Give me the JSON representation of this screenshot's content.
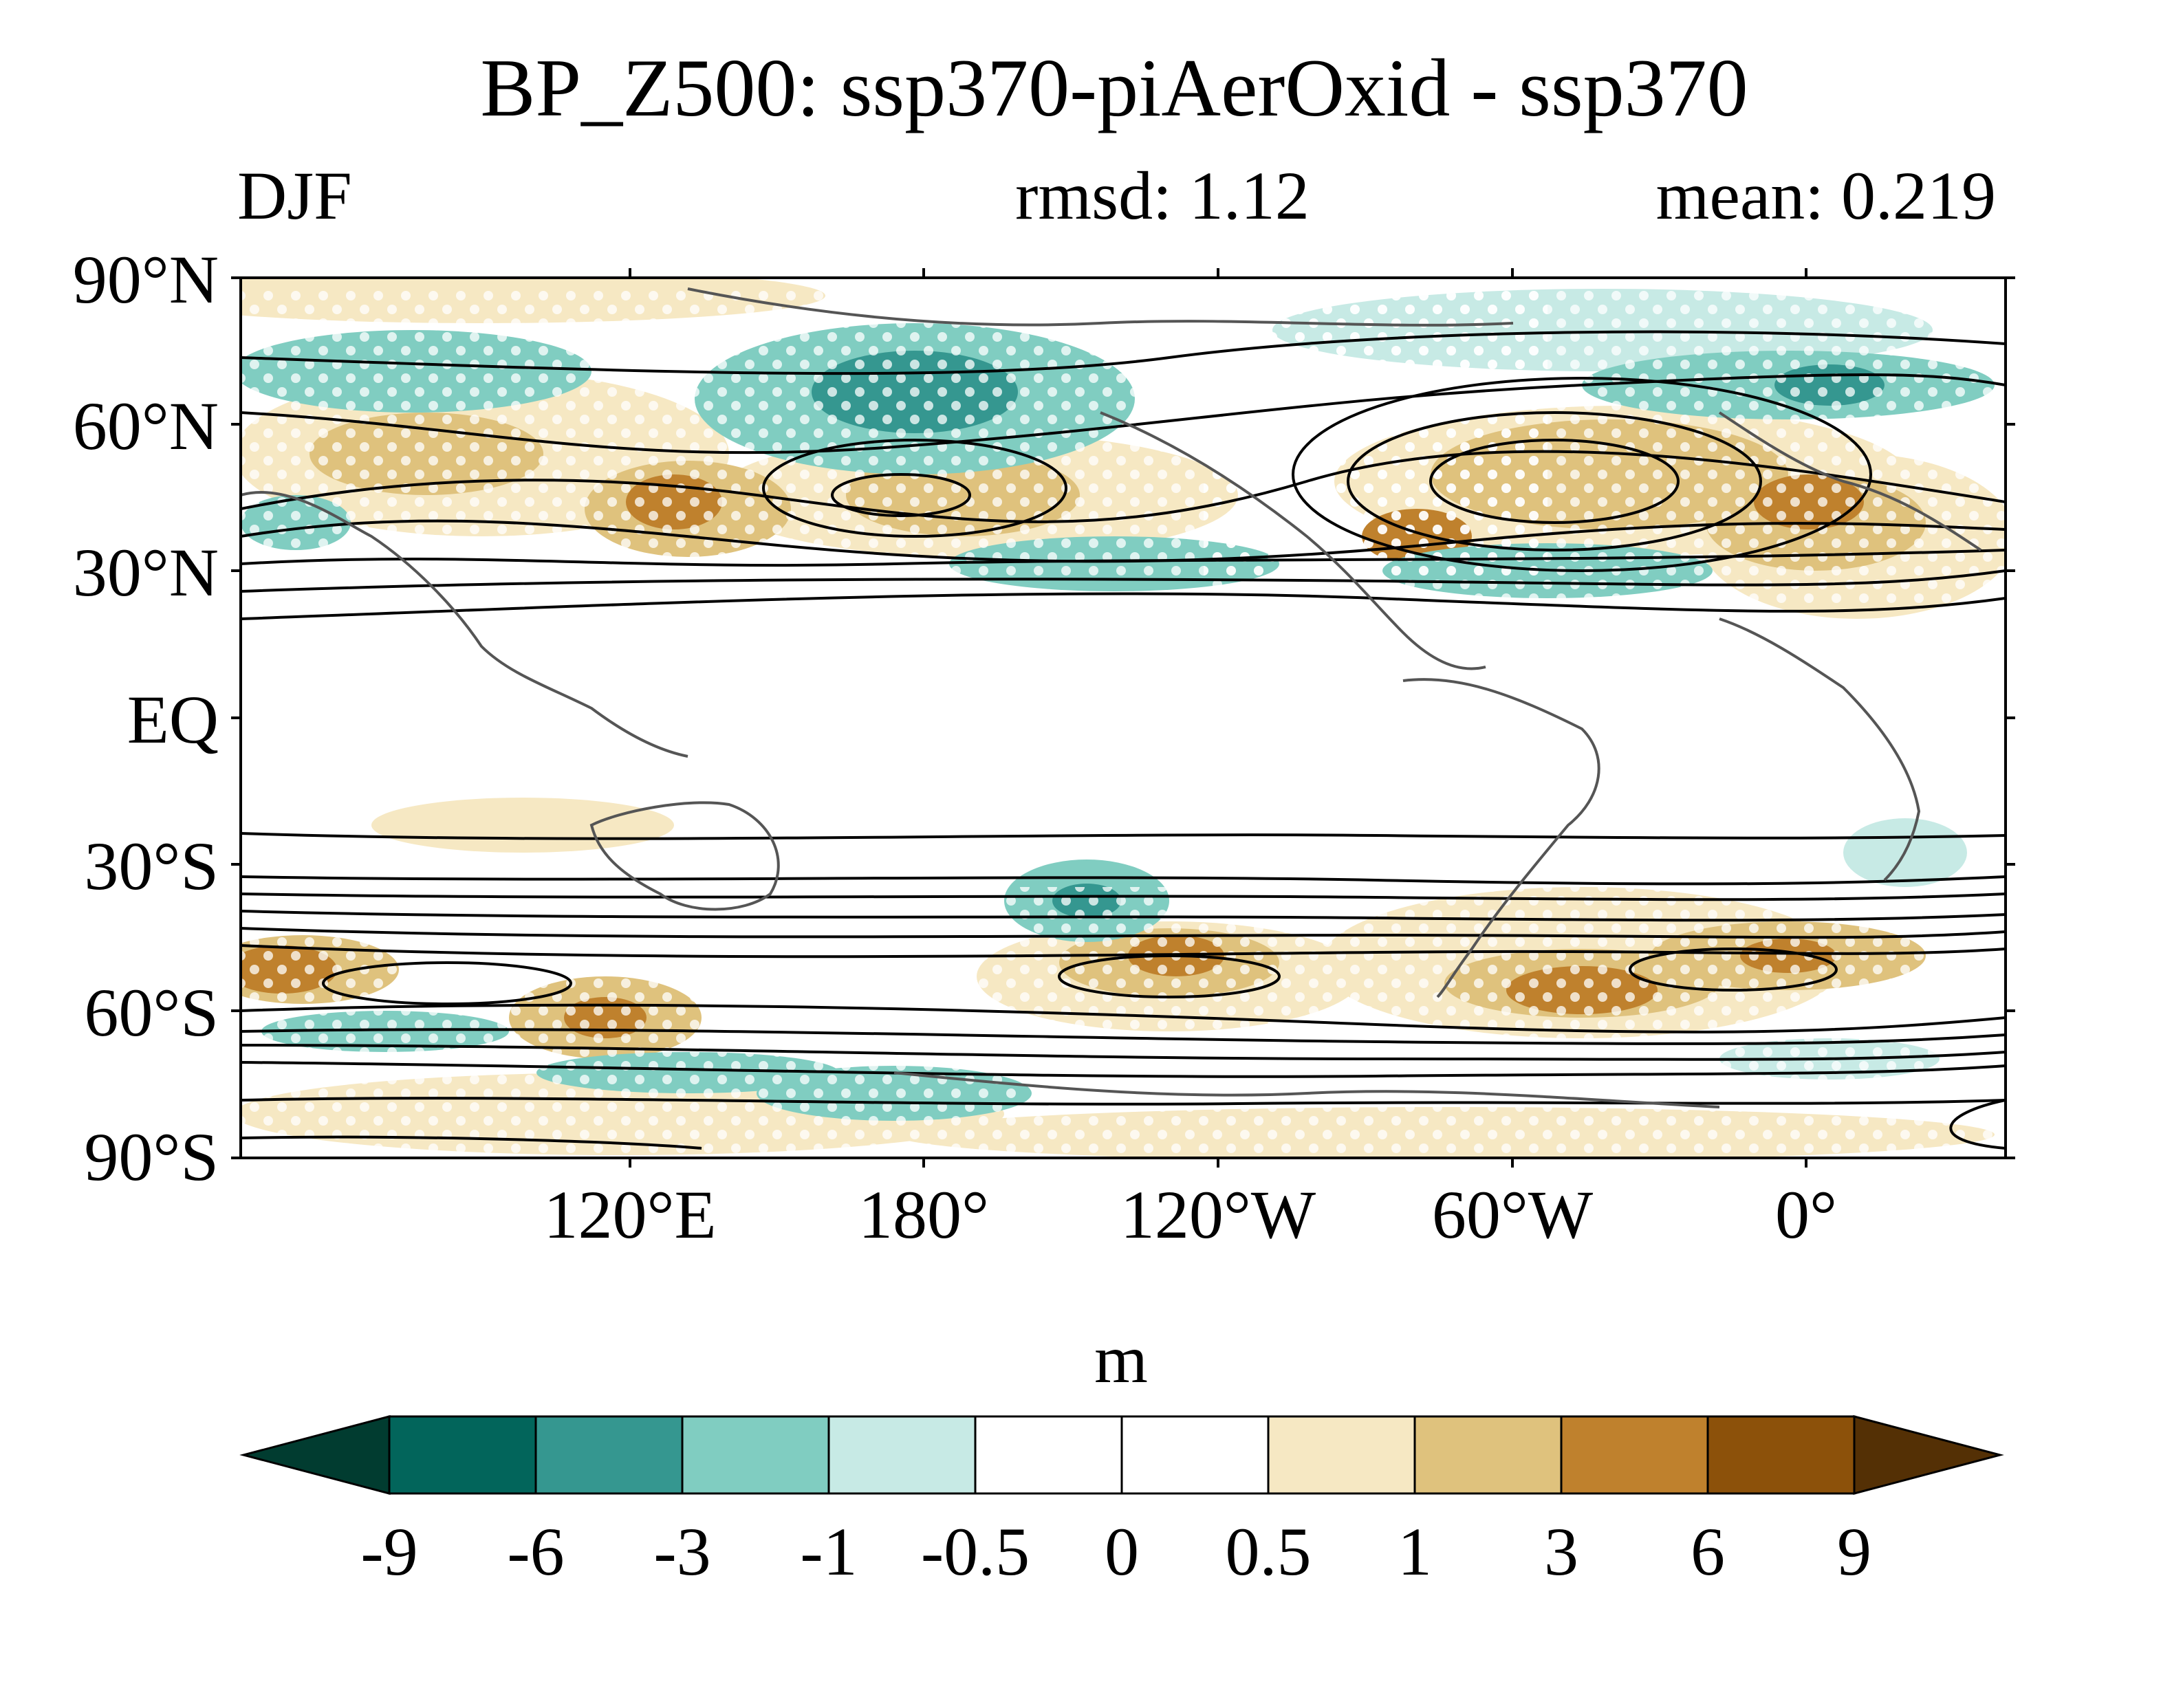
{
  "header": {
    "title": "BP_Z500: ssp370-piAerOxid - ssp370",
    "season": "DJF",
    "rmsd": "rmsd: 1.12",
    "mean": "mean: 0.219"
  },
  "map": {
    "lat_labels": [
      "90°N",
      "60°N",
      "30°N",
      "EQ",
      "30°S",
      "60°S",
      "90°S"
    ],
    "lon_labels": [
      "120°E",
      "180°",
      "120°W",
      "60°W",
      "0°"
    ]
  },
  "colorbar": {
    "units": "m",
    "levels": [
      "-9",
      "-6",
      "-3",
      "-1",
      "-0.5",
      "0",
      "0.5",
      "1",
      "3",
      "6",
      "9"
    ],
    "colors": [
      "#013c30",
      "#02655b",
      "#359790",
      "#80cdc1",
      "#c7eae5",
      "#ffffff",
      "#ffffff",
      "#f6e8c3",
      "#dfc27d",
      "#bf812d",
      "#8c510a",
      "#543005"
    ]
  }
}
